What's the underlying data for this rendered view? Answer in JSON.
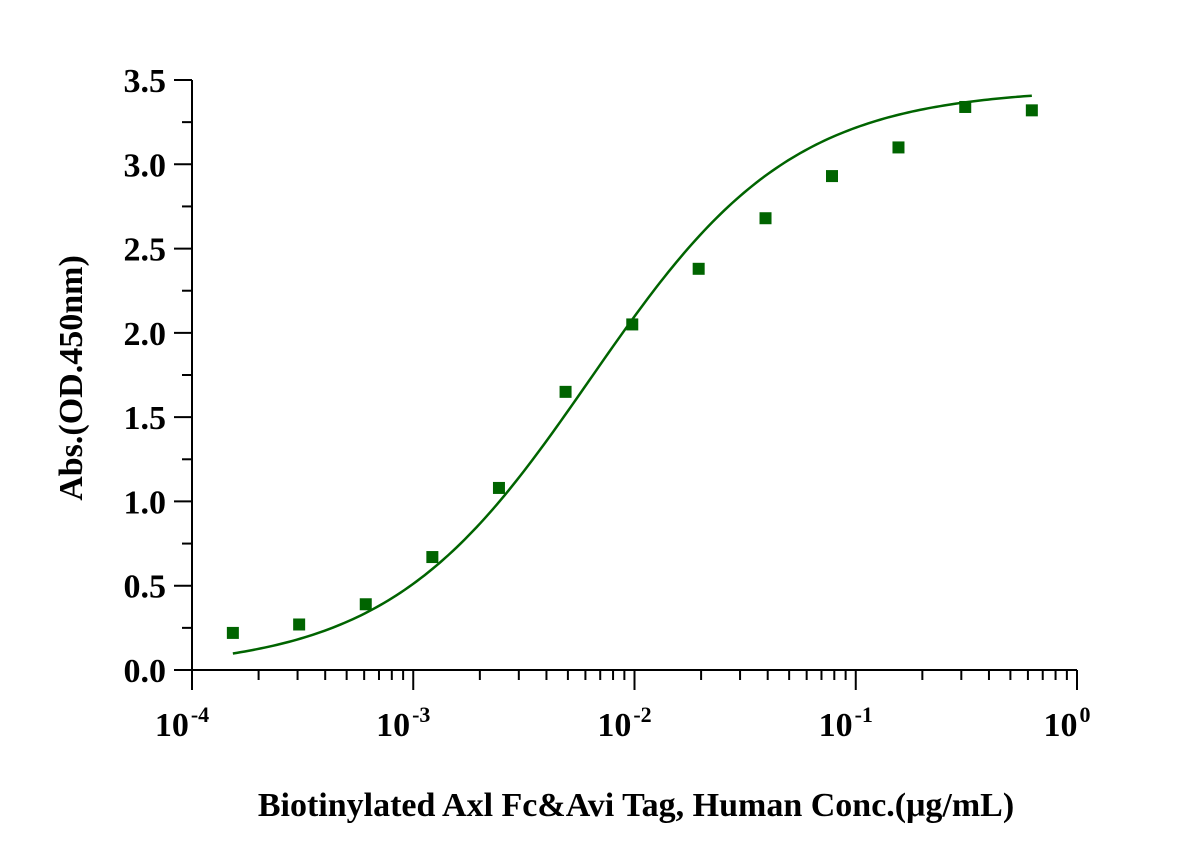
{
  "chart_data": {
    "type": "scatter",
    "xlabel": "Biotinylated Axl Fc&Avi Tag, Human  Conc.(μg/mL)",
    "ylabel": "Abs.(OD.450nm)",
    "x_scale": "log",
    "xlim": [
      0.0001,
      1
    ],
    "ylim": [
      0,
      3.5
    ],
    "x_ticks": [
      {
        "value": 0.0001,
        "base": "10",
        "exp": "-4"
      },
      {
        "value": 0.001,
        "base": "10",
        "exp": "-3"
      },
      {
        "value": 0.01,
        "base": "10",
        "exp": "-2"
      },
      {
        "value": 0.1,
        "base": "10",
        "exp": "-1"
      },
      {
        "value": 1,
        "base": "10",
        "exp": "0"
      }
    ],
    "y_ticks": [
      "0.0",
      "0.5",
      "1.0",
      "1.5",
      "2.0",
      "2.5",
      "3.0",
      "3.5"
    ],
    "grid": false,
    "legend": "none",
    "color": "#006400",
    "series": [
      {
        "marker": "square",
        "x": [
          0.000153,
          0.000305,
          0.00061,
          0.00122,
          0.00244,
          0.00488,
          0.00977,
          0.0195,
          0.0391,
          0.0781,
          0.156,
          0.3125,
          0.625
        ],
        "y": [
          0.22,
          0.27,
          0.39,
          0.67,
          1.08,
          1.65,
          2.05,
          2.38,
          2.68,
          2.93,
          3.1,
          3.34,
          3.32
        ]
      }
    ],
    "fit_curve": {
      "model": "four-parameter logistic",
      "bottom": 0.0,
      "top": 3.45,
      "ec50": 0.0063,
      "hill": 0.95,
      "x_range": [
        0.000153,
        0.625
      ]
    }
  }
}
